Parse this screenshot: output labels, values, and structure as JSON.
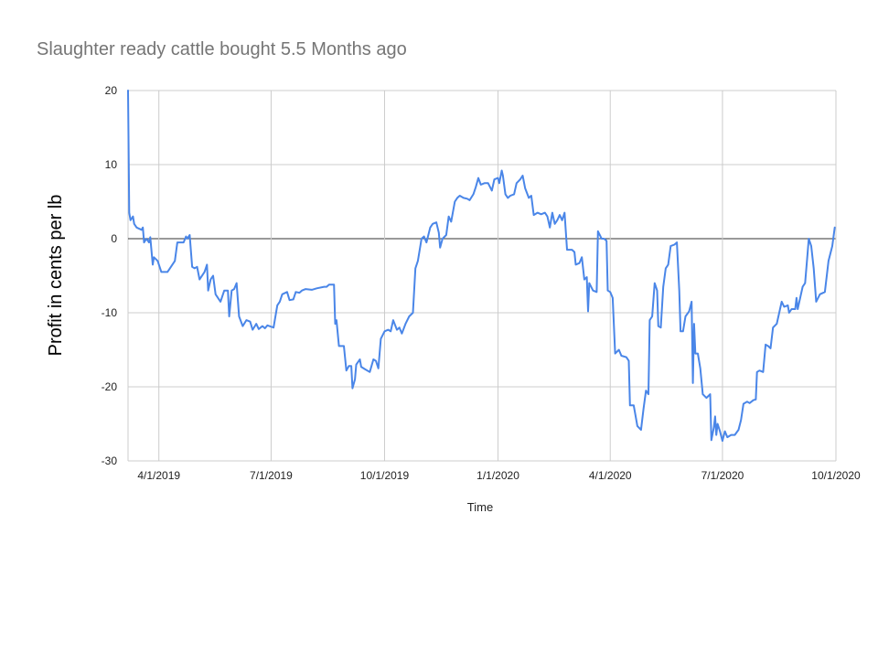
{
  "chart_data": {
    "type": "line",
    "title": "Slaughter ready cattle bought 5.5 Months ago",
    "xlabel": "Time",
    "ylabel": "Profit in cents per lb",
    "x_type": "date",
    "xlim": [
      "2019-03-07",
      "2020-10-01"
    ],
    "ylim": [
      -30,
      20
    ],
    "y_ticks": [
      20,
      10,
      0,
      -10,
      -20,
      -30
    ],
    "x_ticks": [
      {
        "date": "2019-04-01",
        "label": "4/1/2019"
      },
      {
        "date": "2019-07-01",
        "label": "7/1/2019"
      },
      {
        "date": "2019-10-01",
        "label": "10/1/2019"
      },
      {
        "date": "2020-01-01",
        "label": "1/1/2020"
      },
      {
        "date": "2020-04-01",
        "label": "4/1/2020"
      },
      {
        "date": "2020-07-01",
        "label": "7/1/2020"
      },
      {
        "date": "2020-10-01",
        "label": "10/1/2020"
      }
    ],
    "grid": true,
    "legend": "none",
    "series": [
      {
        "color": "#4a86e8",
        "points": [
          [
            "2019-03-07",
            20
          ],
          [
            "2019-03-08",
            3.5
          ],
          [
            "2019-03-09",
            2.5
          ],
          [
            "2019-03-11",
            3
          ],
          [
            "2019-03-12",
            2
          ],
          [
            "2019-03-14",
            1.5
          ],
          [
            "2019-03-18",
            1.2
          ],
          [
            "2019-03-19",
            1.5
          ],
          [
            "2019-03-20",
            -0.5
          ],
          [
            "2019-03-22",
            0
          ],
          [
            "2019-03-24",
            -0.5
          ],
          [
            "2019-03-25",
            0.2
          ],
          [
            "2019-03-27",
            -3.5
          ],
          [
            "2019-03-28",
            -2.5
          ],
          [
            "2019-03-31",
            -3
          ],
          [
            "2019-04-03",
            -4.5
          ],
          [
            "2019-04-08",
            -4.5
          ],
          [
            "2019-04-10",
            -4
          ],
          [
            "2019-04-14",
            -3
          ],
          [
            "2019-04-16",
            -0.5
          ],
          [
            "2019-04-21",
            -0.5
          ],
          [
            "2019-04-23",
            0.3
          ],
          [
            "2019-04-24",
            0
          ],
          [
            "2019-04-26",
            0.5
          ],
          [
            "2019-04-28",
            -3.8
          ],
          [
            "2019-04-30",
            -4
          ],
          [
            "2019-05-02",
            -3.8
          ],
          [
            "2019-05-04",
            -5.5
          ],
          [
            "2019-05-08",
            -4.5
          ],
          [
            "2019-05-10",
            -3.5
          ],
          [
            "2019-05-11",
            -7
          ],
          [
            "2019-05-13",
            -5.5
          ],
          [
            "2019-05-15",
            -5
          ],
          [
            "2019-05-17",
            -7.5
          ],
          [
            "2019-05-21",
            -8.5
          ],
          [
            "2019-05-24",
            -7
          ],
          [
            "2019-05-27",
            -7
          ],
          [
            "2019-05-28",
            -10.5
          ],
          [
            "2019-05-30",
            -7
          ],
          [
            "2019-06-01",
            -6.8
          ],
          [
            "2019-06-03",
            -6
          ],
          [
            "2019-06-05",
            -10.5
          ],
          [
            "2019-06-08",
            -11.8
          ],
          [
            "2019-06-11",
            -11
          ],
          [
            "2019-06-14",
            -11.2
          ],
          [
            "2019-06-16",
            -12.3
          ],
          [
            "2019-06-19",
            -11.5
          ],
          [
            "2019-06-21",
            -12.2
          ],
          [
            "2019-06-24",
            -11.8
          ],
          [
            "2019-06-26",
            -12.1
          ],
          [
            "2019-06-28",
            -11.7
          ],
          [
            "2019-07-03",
            -12
          ],
          [
            "2019-07-06",
            -9
          ],
          [
            "2019-07-08",
            -8.5
          ],
          [
            "2019-07-10",
            -7.5
          ],
          [
            "2019-07-14",
            -7.2
          ],
          [
            "2019-07-16",
            -8.3
          ],
          [
            "2019-07-19",
            -8.2
          ],
          [
            "2019-07-21",
            -7.2
          ],
          [
            "2019-07-24",
            -7.3
          ],
          [
            "2019-07-26",
            -7
          ],
          [
            "2019-07-29",
            -6.8
          ],
          [
            "2019-08-03",
            -6.9
          ],
          [
            "2019-08-07",
            -6.7
          ],
          [
            "2019-08-13",
            -6.5
          ],
          [
            "2019-08-15",
            -6.5
          ],
          [
            "2019-08-17",
            -6.2
          ],
          [
            "2019-08-21",
            -6.2
          ],
          [
            "2019-08-22",
            -11.5
          ],
          [
            "2019-08-23",
            -11
          ],
          [
            "2019-08-25",
            -14.5
          ],
          [
            "2019-08-29",
            -14.5
          ],
          [
            "2019-08-31",
            -17.8
          ],
          [
            "2019-09-02",
            -17.2
          ],
          [
            "2019-09-04",
            -17.2
          ],
          [
            "2019-09-05",
            -20.2
          ],
          [
            "2019-09-07",
            -19
          ],
          [
            "2019-09-08",
            -17
          ],
          [
            "2019-09-11",
            -16.3
          ],
          [
            "2019-09-12",
            -17.3
          ],
          [
            "2019-09-15",
            -17.6
          ],
          [
            "2019-09-19",
            -18
          ],
          [
            "2019-09-22",
            -16.3
          ],
          [
            "2019-09-24",
            -16.5
          ],
          [
            "2019-09-26",
            -17.5
          ],
          [
            "2019-09-28",
            -13.5
          ],
          [
            "2019-10-01",
            -12.5
          ],
          [
            "2019-10-04",
            -12.3
          ],
          [
            "2019-10-06",
            -12.5
          ],
          [
            "2019-10-08",
            -11
          ],
          [
            "2019-10-11",
            -12.3
          ],
          [
            "2019-10-13",
            -12
          ],
          [
            "2019-10-15",
            -12.8
          ],
          [
            "2019-10-18",
            -11.5
          ],
          [
            "2019-10-21",
            -10.5
          ],
          [
            "2019-10-24",
            -10
          ],
          [
            "2019-10-26",
            -4
          ],
          [
            "2019-10-28",
            -3
          ],
          [
            "2019-10-31",
            0
          ],
          [
            "2019-11-02",
            0.3
          ],
          [
            "2019-11-04",
            -0.5
          ],
          [
            "2019-11-07",
            1.5
          ],
          [
            "2019-11-09",
            2
          ],
          [
            "2019-11-12",
            2.2
          ],
          [
            "2019-11-14",
            0.8
          ],
          [
            "2019-11-15",
            -1.2
          ],
          [
            "2019-11-17",
            0
          ],
          [
            "2019-11-20",
            0.5
          ],
          [
            "2019-11-22",
            3
          ],
          [
            "2019-11-24",
            2.3
          ],
          [
            "2019-11-27",
            5
          ],
          [
            "2019-11-29",
            5.5
          ],
          [
            "2019-12-01",
            5.8
          ],
          [
            "2019-12-04",
            5.5
          ],
          [
            "2019-12-07",
            5.4
          ],
          [
            "2019-12-09",
            5.2
          ],
          [
            "2019-12-12",
            6
          ],
          [
            "2019-12-14",
            7
          ],
          [
            "2019-12-16",
            8.2
          ],
          [
            "2019-12-18",
            7.3
          ],
          [
            "2019-12-21",
            7.5
          ],
          [
            "2019-12-24",
            7.5
          ],
          [
            "2019-12-27",
            6.5
          ],
          [
            "2019-12-29",
            8
          ],
          [
            "2020-01-01",
            8.2
          ],
          [
            "2020-01-02",
            7.5
          ],
          [
            "2020-01-04",
            9.2
          ],
          [
            "2020-01-05",
            8.5
          ],
          [
            "2020-01-07",
            6
          ],
          [
            "2020-01-09",
            5.5
          ],
          [
            "2020-01-11",
            5.8
          ],
          [
            "2020-01-14",
            6
          ],
          [
            "2020-01-16",
            7.5
          ],
          [
            "2020-01-19",
            8
          ],
          [
            "2020-01-21",
            8.5
          ],
          [
            "2020-01-23",
            6.8
          ],
          [
            "2020-01-26",
            5.5
          ],
          [
            "2020-01-28",
            5.8
          ],
          [
            "2020-01-30",
            3.2
          ],
          [
            "2020-02-02",
            3.5
          ],
          [
            "2020-02-05",
            3.3
          ],
          [
            "2020-02-08",
            3.5
          ],
          [
            "2020-02-10",
            3
          ],
          [
            "2020-02-12",
            1.5
          ],
          [
            "2020-02-14",
            3.5
          ],
          [
            "2020-02-16",
            2
          ],
          [
            "2020-02-18",
            2.5
          ],
          [
            "2020-02-20",
            3.2
          ],
          [
            "2020-02-22",
            2.5
          ],
          [
            "2020-02-24",
            3.5
          ],
          [
            "2020-02-26",
            -1.5
          ],
          [
            "2020-03-01",
            -1.5
          ],
          [
            "2020-03-03",
            -1.8
          ],
          [
            "2020-03-04",
            -3.5
          ],
          [
            "2020-03-07",
            -3.3
          ],
          [
            "2020-03-09",
            -2.5
          ],
          [
            "2020-03-11",
            -5.5
          ],
          [
            "2020-03-13",
            -5.2
          ],
          [
            "2020-03-14",
            -9.8
          ],
          [
            "2020-03-15",
            -6
          ],
          [
            "2020-03-18",
            -7
          ],
          [
            "2020-03-21",
            -7.2
          ],
          [
            "2020-03-22",
            1
          ],
          [
            "2020-03-25",
            0
          ],
          [
            "2020-03-27",
            0
          ],
          [
            "2020-03-29",
            -0.3
          ],
          [
            "2020-03-30",
            -7
          ],
          [
            "2020-04-01",
            -7.2
          ],
          [
            "2020-04-03",
            -8
          ],
          [
            "2020-04-05",
            -15.5
          ],
          [
            "2020-04-08",
            -15
          ],
          [
            "2020-04-10",
            -15.8
          ],
          [
            "2020-04-14",
            -16
          ],
          [
            "2020-04-16",
            -16.5
          ],
          [
            "2020-04-17",
            -22.5
          ],
          [
            "2020-04-20",
            -22.5
          ],
          [
            "2020-04-23",
            -25.3
          ],
          [
            "2020-04-26",
            -25.8
          ],
          [
            "2020-04-28",
            -23
          ],
          [
            "2020-04-30",
            -20.5
          ],
          [
            "2020-05-02",
            -21
          ],
          [
            "2020-05-03",
            -11
          ],
          [
            "2020-05-05",
            -10.5
          ],
          [
            "2020-05-07",
            -6
          ],
          [
            "2020-05-09",
            -7
          ],
          [
            "2020-05-10",
            -11.8
          ],
          [
            "2020-05-12",
            -12
          ],
          [
            "2020-05-14",
            -6.5
          ],
          [
            "2020-05-16",
            -4
          ],
          [
            "2020-05-18",
            -3.5
          ],
          [
            "2020-05-20",
            -1
          ],
          [
            "2020-05-23",
            -0.8
          ],
          [
            "2020-05-25",
            -0.5
          ],
          [
            "2020-05-27",
            -7
          ],
          [
            "2020-05-28",
            -12.5
          ],
          [
            "2020-05-30",
            -12.5
          ],
          [
            "2020-06-01",
            -10.5
          ],
          [
            "2020-06-04",
            -9.8
          ],
          [
            "2020-06-06",
            -8.5
          ],
          [
            "2020-06-07",
            -19.5
          ],
          [
            "2020-06-08",
            -11.5
          ],
          [
            "2020-06-09",
            -15.5
          ],
          [
            "2020-06-11",
            -15.5
          ],
          [
            "2020-06-13",
            -17.5
          ],
          [
            "2020-06-15",
            -21
          ],
          [
            "2020-06-18",
            -21.5
          ],
          [
            "2020-06-21",
            -21
          ],
          [
            "2020-06-22",
            -27.2
          ],
          [
            "2020-06-24",
            -25.5
          ],
          [
            "2020-06-25",
            -24
          ],
          [
            "2020-06-26",
            -26.5
          ],
          [
            "2020-06-27",
            -25
          ],
          [
            "2020-06-29",
            -26
          ],
          [
            "2020-07-01",
            -27.3
          ],
          [
            "2020-07-03",
            -26
          ],
          [
            "2020-07-05",
            -26.8
          ],
          [
            "2020-07-08",
            -26.5
          ],
          [
            "2020-07-11",
            -26.5
          ],
          [
            "2020-07-14",
            -25.8
          ],
          [
            "2020-07-16",
            -24.5
          ],
          [
            "2020-07-18",
            -22.3
          ],
          [
            "2020-07-21",
            -22
          ],
          [
            "2020-07-23",
            -22.2
          ],
          [
            "2020-07-26",
            -21.8
          ],
          [
            "2020-07-28",
            -21.7
          ],
          [
            "2020-07-29",
            -18
          ],
          [
            "2020-07-31",
            -17.8
          ],
          [
            "2020-08-03",
            -18
          ],
          [
            "2020-08-05",
            -14.3
          ],
          [
            "2020-08-07",
            -14.5
          ],
          [
            "2020-08-09",
            -14.8
          ],
          [
            "2020-08-11",
            -12
          ],
          [
            "2020-08-14",
            -11.5
          ],
          [
            "2020-08-16",
            -10
          ],
          [
            "2020-08-18",
            -8.5
          ],
          [
            "2020-08-20",
            -9.2
          ],
          [
            "2020-08-23",
            -9
          ],
          [
            "2020-08-24",
            -10
          ],
          [
            "2020-08-26",
            -9.5
          ],
          [
            "2020-08-29",
            -9.5
          ],
          [
            "2020-08-30",
            -8
          ],
          [
            "2020-08-31",
            -9.5
          ],
          [
            "2020-09-02",
            -8
          ],
          [
            "2020-09-04",
            -6.5
          ],
          [
            "2020-09-06",
            -6
          ],
          [
            "2020-09-08",
            -2
          ],
          [
            "2020-09-09",
            0
          ],
          [
            "2020-09-11",
            -1
          ],
          [
            "2020-09-13",
            -4
          ],
          [
            "2020-09-15",
            -8.5
          ],
          [
            "2020-09-18",
            -7.5
          ],
          [
            "2020-09-22",
            -7.2
          ],
          [
            "2020-09-25",
            -3
          ],
          [
            "2020-09-28",
            -1
          ],
          [
            "2020-09-30",
            1.5
          ]
        ]
      }
    ]
  }
}
